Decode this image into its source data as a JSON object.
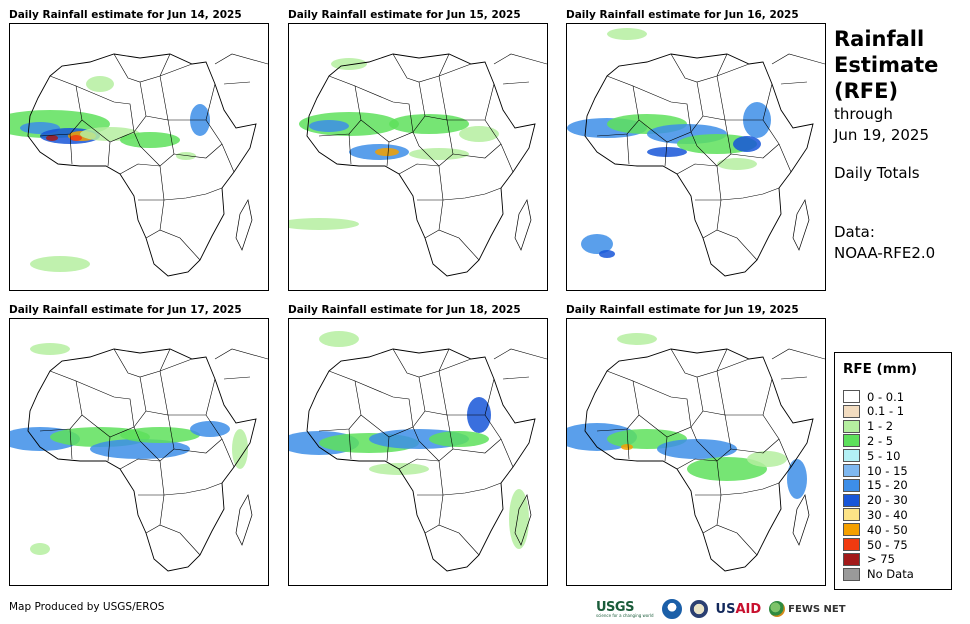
{
  "panels": [
    {
      "title": "Daily Rainfall estimate for Jun 14, 2025"
    },
    {
      "title": "Daily Rainfall estimate for Jun 15, 2025"
    },
    {
      "title": "Daily Rainfall estimate for Jun 16, 2025"
    },
    {
      "title": "Daily Rainfall estimate for Jun 17, 2025"
    },
    {
      "title": "Daily Rainfall estimate for Jun 18, 2025"
    },
    {
      "title": "Daily Rainfall estimate for Jun 19, 2025"
    }
  ],
  "side": {
    "title_line1": "Rainfall",
    "title_line2": "Estimate",
    "title_line3": "(RFE)",
    "through": "through",
    "date": "Jun 19, 2025",
    "totals": "Daily Totals",
    "data_label": "Data:",
    "data_source": "NOAA-RFE2.0"
  },
  "legend": {
    "title": "RFE (mm)",
    "items": [
      {
        "label": "0 - 0.1",
        "color": "#ffffff"
      },
      {
        "label": "0.1 - 1",
        "color": "#f2dcc0"
      },
      {
        "label": "1 - 2",
        "color": "#b5efa0"
      },
      {
        "label": "2 - 5",
        "color": "#5ee05c"
      },
      {
        "label": "5 - 10",
        "color": "#b3f0f5"
      },
      {
        "label": "10 - 15",
        "color": "#7fb8f0"
      },
      {
        "label": "15 - 20",
        "color": "#3d8ee8"
      },
      {
        "label": "20 - 30",
        "color": "#1856d8"
      },
      {
        "label": "30 - 40",
        "color": "#fde487"
      },
      {
        "label": "40 - 50",
        "color": "#f5a000"
      },
      {
        "label": "50 - 75",
        "color": "#f03a10"
      },
      {
        "label": "> 75",
        "color": "#a31a1a"
      },
      {
        "label": "No Data",
        "color": "#9a9a9a"
      }
    ]
  },
  "footer": {
    "credit": "Map Produced by USGS/EROS"
  },
  "logos": {
    "usgs": "USGS",
    "usgs_tagline": "science for a changing world",
    "usaid_us": "US",
    "usaid_aid": "AID",
    "fews": "FEWS NET"
  },
  "icons": [
    "noaa-logo-icon",
    "state-dept-logo-icon",
    "fews-globe-icon"
  ]
}
